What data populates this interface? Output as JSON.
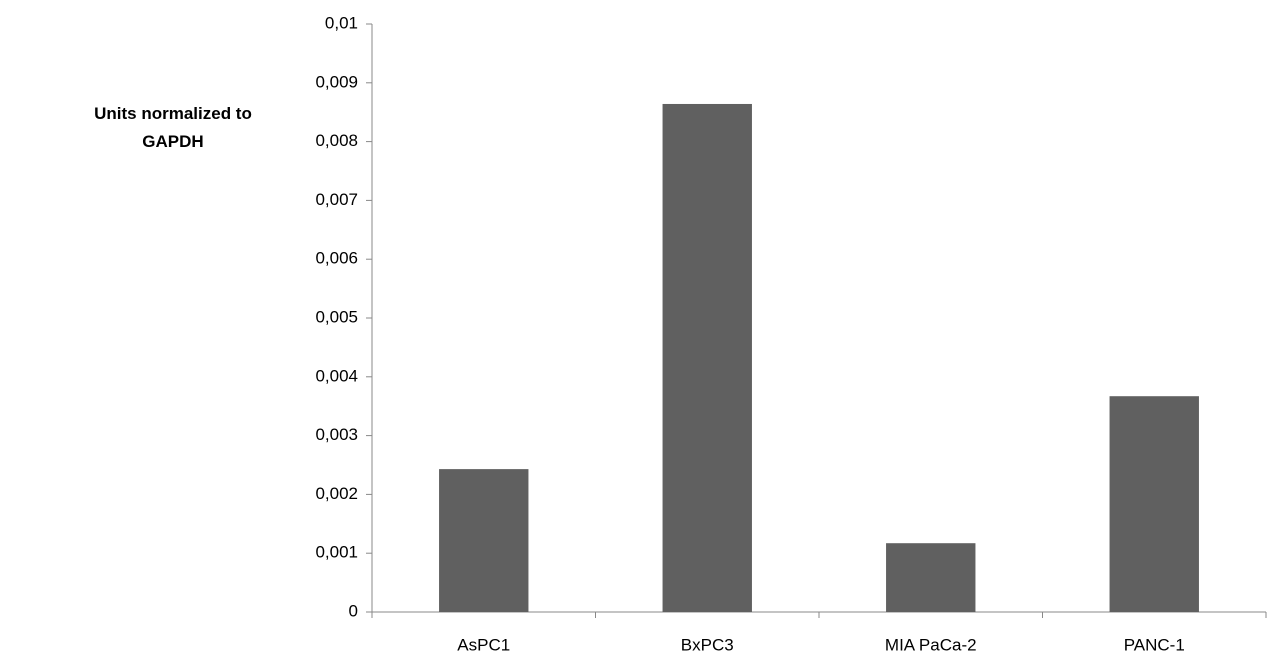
{
  "chart_data": {
    "type": "bar",
    "y_label": "Units normalized to GAPDH",
    "categories": [
      "AsPC1",
      "BxPC3",
      "MIA PaCa-2",
      "PANC-1"
    ],
    "values": [
      0.00243,
      0.00864,
      0.00117,
      0.00367
    ],
    "color": "#606060",
    "ylim": [
      0,
      0.01
    ],
    "yticks": [
      0,
      {
        "value": 0.001,
        "label": "0,001"
      },
      {
        "value": 0.002,
        "label": "0,002"
      },
      {
        "value": 0.003,
        "label": "0,003"
      },
      {
        "value": 0.004,
        "label": "0,004"
      },
      {
        "value": 0.005,
        "label": "0,005"
      },
      {
        "value": 0.006,
        "label": "0,006"
      },
      {
        "value": 0.007,
        "label": "0,007"
      },
      {
        "value": 0.008,
        "label": "0,008"
      },
      {
        "value": 0.009,
        "label": "0,009"
      },
      {
        "value": 0.01,
        "label": "0,01"
      }
    ],
    "grid": false
  }
}
